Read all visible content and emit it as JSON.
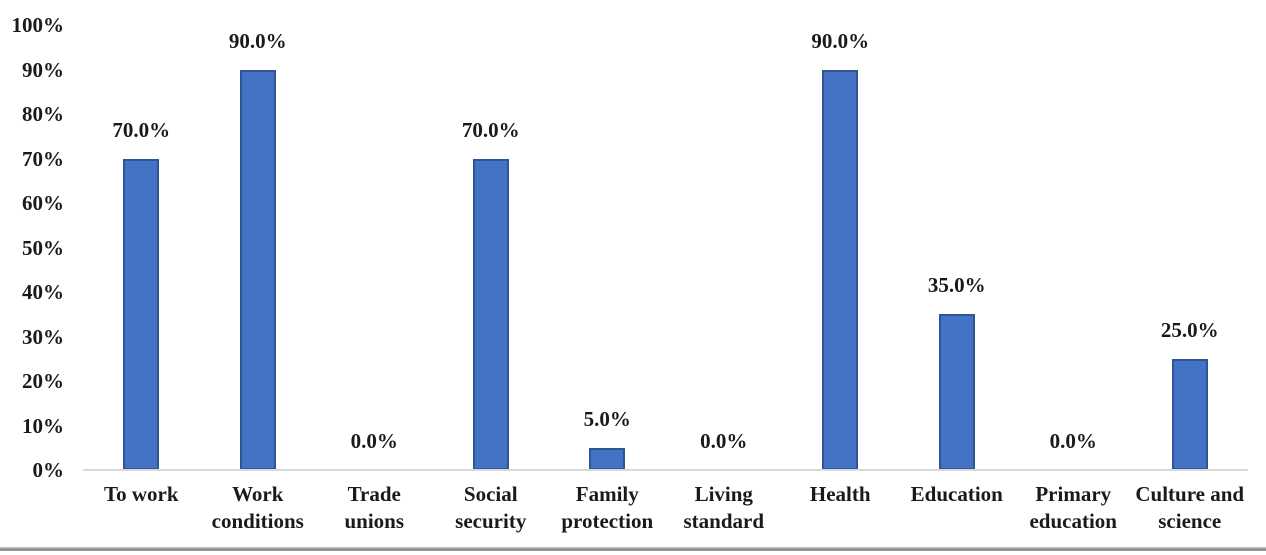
{
  "chart_data": {
    "type": "bar",
    "categories": [
      "To work",
      "Work conditions",
      "Trade unions",
      "Social security",
      "Family protection",
      "Living standard",
      "Health",
      "Education",
      "Primary education",
      "Culture and science"
    ],
    "values": [
      70,
      90,
      0,
      70,
      5,
      0,
      90,
      35,
      0,
      25
    ],
    "data_labels": [
      "70.0%",
      "90.0%",
      "0.0%",
      "70.0%",
      "5.0%",
      "0.0%",
      "90.0%",
      "35.0%",
      "0.0%",
      "25.0%"
    ],
    "y_ticks": [
      "0%",
      "10%",
      "20%",
      "30%",
      "40%",
      "50%",
      "60%",
      "70%",
      "80%",
      "90%",
      "100%"
    ],
    "y_tick_values": [
      0,
      10,
      20,
      30,
      40,
      50,
      60,
      70,
      80,
      90,
      100
    ],
    "title": "",
    "xlabel": "",
    "ylabel": "",
    "ylim": [
      0,
      100
    ],
    "grid": false,
    "legend": false,
    "colors": {
      "bar_fill": "#4472C4",
      "bar_border": "#2F5597",
      "axis_line": "#D9D9D9",
      "text": "#1A1A1A",
      "bottom_rule": "#8A8A8A"
    }
  }
}
